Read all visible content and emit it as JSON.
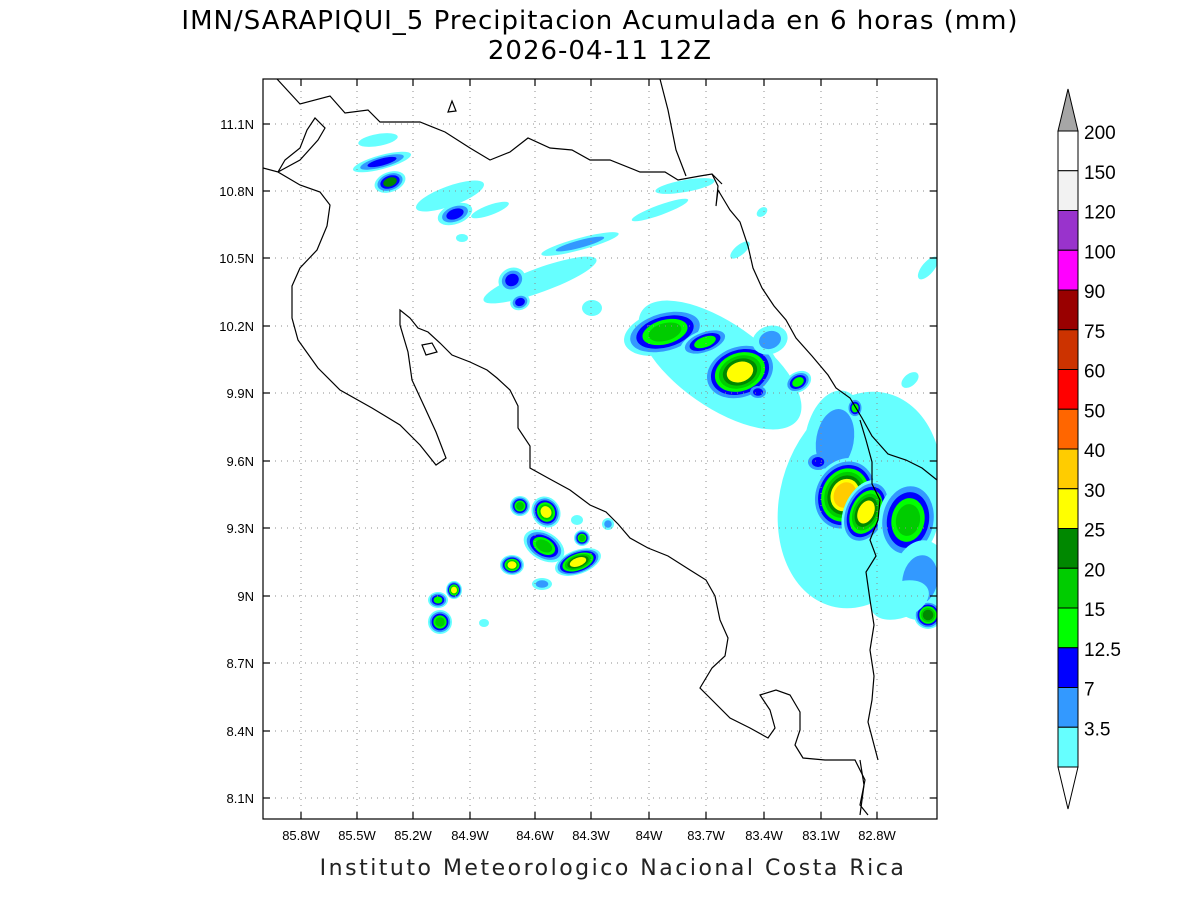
{
  "title": {
    "line1": "IMN/SARAPIQUI_5 Precipitacion Acumulada en 6 horas (mm)",
    "line2": "2026-04-11 12Z"
  },
  "footer": "Instituto Meteorologico Nacional Costa Rica",
  "map": {
    "lon_ticks": [
      "85.8W",
      "85.5W",
      "85.2W",
      "84.9W",
      "84.6W",
      "84.3W",
      "84W",
      "83.7W",
      "83.4W",
      "83.1W",
      "82.8W"
    ],
    "lat_ticks": [
      "11.1N",
      "10.8N",
      "10.5N",
      "10.2N",
      "9.9N",
      "9.6N",
      "9.3N",
      "9N",
      "8.7N",
      "8.4N",
      "8.1N"
    ],
    "grid": "dotted",
    "colors": {
      "c3_5": "#66ffff",
      "c7": "#3399ff",
      "c12_5": "#0000ff",
      "c15": "#00ff00",
      "c20": "#00cc00",
      "c25": "#008800",
      "c30": "#ffff00",
      "c40": "#ffcc00"
    }
  },
  "legend": {
    "entries": [
      {
        "label": "200",
        "color": "#ffffff"
      },
      {
        "label": "150",
        "color": "#f2f2f2"
      },
      {
        "label": "120",
        "color": "#9933cc"
      },
      {
        "label": "100",
        "color": "#ff00ff"
      },
      {
        "label": "90",
        "color": "#990000"
      },
      {
        "label": "75",
        "color": "#cc3300"
      },
      {
        "label": "60",
        "color": "#ff0000"
      },
      {
        "label": "50",
        "color": "#ff6600"
      },
      {
        "label": "40",
        "color": "#ffcc00"
      },
      {
        "label": "30",
        "color": "#ffff00"
      },
      {
        "label": "25",
        "color": "#008800"
      },
      {
        "label": "20",
        "color": "#00cc00"
      },
      {
        "label": "15",
        "color": "#00ff00"
      },
      {
        "label": "12.5",
        "color": "#0000ff"
      },
      {
        "label": "7",
        "color": "#3399ff"
      },
      {
        "label": "3.5",
        "color": "#66ffff"
      }
    ],
    "top_arrow_color": "#a6a6a6",
    "bottom_arrow_color": "#ffffff"
  }
}
